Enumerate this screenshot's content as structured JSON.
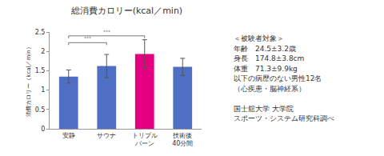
{
  "chart_data": {
    "type": "bar",
    "title": "総消費カロリー(kcal／min)",
    "y_label": "消費カロリー（kcal／min）",
    "categories": [
      "安静",
      "サウナ",
      "トリプル\nバーン",
      "技術後\n40分間"
    ],
    "values": [
      1.35,
      1.62,
      1.93,
      1.6
    ],
    "errors": [
      0.17,
      0.3,
      0.37,
      0.22
    ],
    "colors": [
      "#4f6fc4",
      "#4f6fc4",
      "#e4007f",
      "#4f6fc4"
    ],
    "ylim": [
      0,
      2.5
    ],
    "yticks": [
      0,
      0.5,
      1,
      1.5,
      2,
      2.5
    ],
    "grid": false,
    "significance": [
      {
        "from": "安静",
        "to": "トリプル\nバーン",
        "text": "***"
      },
      {
        "from": "安静",
        "to": "サウナ",
        "text": "***"
      }
    ],
    "notes": [
      "＜被験者対象＞",
      "年齢　24.5±3.2歳",
      "身長　174.8±3.8cm",
      "体重　71.3±9.9kg",
      "以下の病歴のない男性12名",
      "（心疾患・脳神経系）",
      "",
      "国士舘大学 大学院",
      "スポーツ・システム研究科調べ"
    ]
  }
}
